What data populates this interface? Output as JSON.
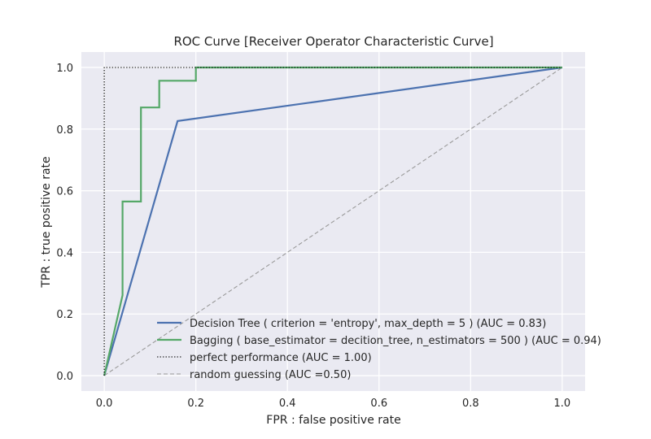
{
  "chart_data": {
    "type": "line",
    "title": "ROC Curve [Receiver Operator Characteristic Curve]",
    "xlabel": "FPR : false positive rate",
    "ylabel": "TPR : true positive rate",
    "xlim": [
      -0.05,
      1.05
    ],
    "ylim": [
      -0.05,
      1.05
    ],
    "xticks": [
      0.0,
      0.2,
      0.4,
      0.6,
      0.8,
      1.0
    ],
    "xtick_labels": [
      "0.0",
      "0.2",
      "0.4",
      "0.6",
      "0.8",
      "1.0"
    ],
    "yticks": [
      0.0,
      0.2,
      0.4,
      0.6,
      0.8,
      1.0
    ],
    "ytick_labels": [
      "0.0",
      "0.2",
      "0.4",
      "0.6",
      "0.8",
      "1.0"
    ],
    "grid": true,
    "legend_position": "lower-right",
    "series": [
      {
        "name": "Decision Tree ( criterion = 'entropy', max_depth = 5 ) (AUC = 0.83)",
        "color": "#4c72b0",
        "style": "solid",
        "x": [
          0.0,
          0.16,
          1.0
        ],
        "y": [
          0.0,
          0.826,
          1.0
        ]
      },
      {
        "name": "Bagging ( base_estimator = decition_tree, n_estimators = 500 ) (AUC = 0.94)",
        "color": "#55a868",
        "style": "solid",
        "x": [
          0.0,
          0.04,
          0.04,
          0.08,
          0.08,
          0.12,
          0.12,
          0.2,
          0.2,
          1.0
        ],
        "y": [
          0.0,
          0.261,
          0.565,
          0.565,
          0.87,
          0.87,
          0.957,
          0.957,
          1.0,
          1.0
        ]
      },
      {
        "name": "perfect performance (AUC = 1.00)",
        "color": "#000000",
        "style": "dotted",
        "x": [
          0.0,
          0.0,
          1.0
        ],
        "y": [
          0.0,
          1.0,
          1.0
        ]
      },
      {
        "name": "random guessing (AUC =0.50)",
        "color": "#999999",
        "style": "dashed",
        "x": [
          0.0,
          1.0
        ],
        "y": [
          0.0,
          1.0
        ]
      }
    ]
  }
}
